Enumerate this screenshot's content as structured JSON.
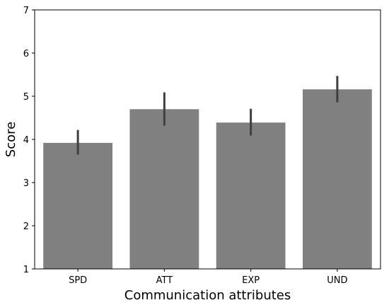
{
  "chart_data": {
    "type": "bar",
    "categories": [
      "SPD",
      "ATT",
      "EXP",
      "UND"
    ],
    "values": [
      3.92,
      4.7,
      4.39,
      5.16
    ],
    "error_low": [
      3.65,
      4.32,
      4.09,
      4.86
    ],
    "error_high": [
      4.22,
      5.09,
      4.71,
      5.47
    ],
    "xlabel": "Communication attributes",
    "ylabel": "Score",
    "ylim": [
      1,
      7
    ],
    "yticks": [
      1,
      2,
      3,
      4,
      5,
      6,
      7
    ],
    "bar_color": "#808080",
    "error_color": "#3f3f3f",
    "grid": false
  }
}
